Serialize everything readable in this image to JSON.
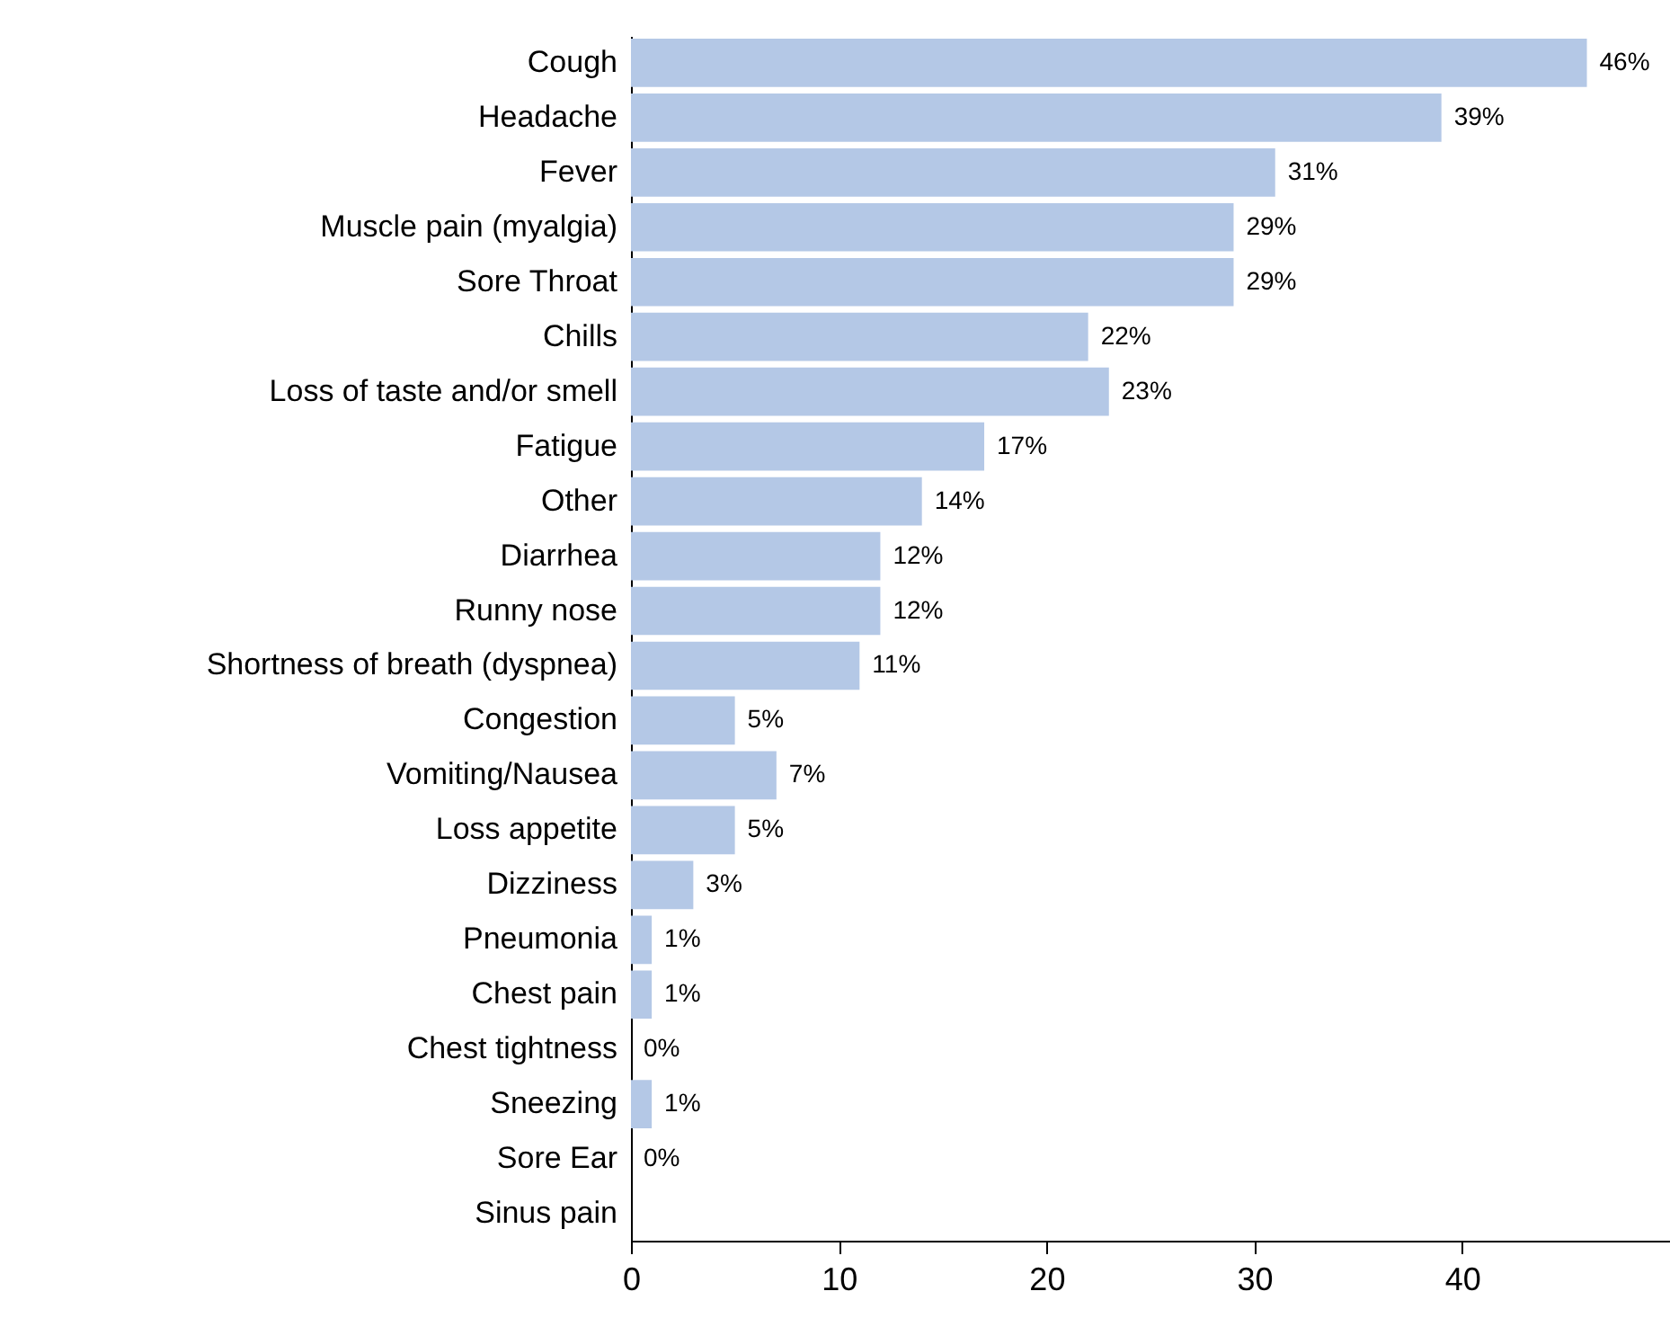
{
  "chart_data": {
    "type": "bar",
    "orientation": "horizontal",
    "categories": [
      "Cough",
      "Headache",
      "Fever",
      "Muscle pain (myalgia)",
      "Sore Throat",
      "Chills",
      "Loss of taste and/or smell",
      "Fatigue",
      "Other",
      "Diarrhea",
      "Runny nose",
      "Shortness of breath (dyspnea)",
      "Congestion",
      "Vomiting/Nausea",
      "Loss appetite",
      "Dizziness",
      "Pneumonia",
      "Chest pain",
      "Chest tightness",
      "Sneezing",
      "Sore Ear",
      "Sinus pain"
    ],
    "values": [
      46,
      39,
      31,
      29,
      29,
      22,
      23,
      17,
      14,
      12,
      12,
      11,
      5,
      7,
      5,
      3,
      1,
      1,
      0,
      1,
      0,
      0
    ],
    "value_labels": [
      "46%",
      "39%",
      "31%",
      "29%",
      "29%",
      "22%",
      "23%",
      "17%",
      "14%",
      "12%",
      "12%",
      "11%",
      "5%",
      "7%",
      "5%",
      "3%",
      "1%",
      "1%",
      "0%",
      "1%",
      "0%",
      null
    ],
    "color": "#b4c8e6",
    "xlim": [
      0,
      50
    ],
    "xticks": [
      0,
      10,
      20,
      30,
      40
    ],
    "grid": false
  }
}
